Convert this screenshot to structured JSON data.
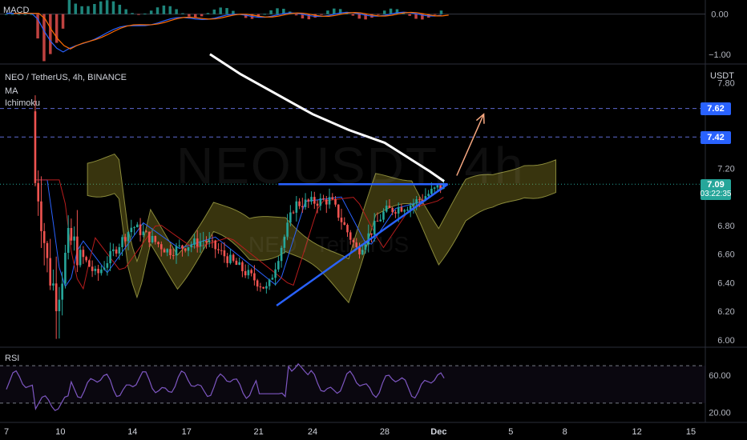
{
  "header": {
    "symbol_line": "NEO / TetherUS, 4h, BINANCE",
    "indicators": [
      "MA",
      "Ichimoku"
    ],
    "macd_label": "MACD",
    "rsi_label": "RSI",
    "watermark": "NEOUSDT, 4h",
    "watermark_sub": "NEO / TetherUS"
  },
  "price_axis": {
    "unit": "USDT",
    "ticks": [
      "7.80",
      "7.20",
      "6.80",
      "6.60",
      "6.40",
      "6.20",
      "6.00"
    ],
    "tick_values": [
      7.8,
      7.2,
      6.8,
      6.6,
      6.4,
      6.2,
      6.0
    ],
    "range": [
      5.96,
      7.92
    ],
    "levels": [
      {
        "label": "7.62",
        "value": 7.62
      },
      {
        "label": "7.42",
        "value": 7.42
      }
    ],
    "current": {
      "value_label": "7.09",
      "value": 7.09,
      "countdown": "03:22:35"
    }
  },
  "macd_axis": {
    "ticks": [
      "0.00",
      "−1.00"
    ],
    "tick_values": [
      0.0,
      -1.0
    ],
    "range": [
      -1.2,
      0.35
    ]
  },
  "rsi_axis": {
    "ticks": [
      "60.00",
      "20.00"
    ],
    "tick_values": [
      60,
      20
    ],
    "range": [
      12,
      88
    ],
    "band": [
      30,
      70
    ]
  },
  "x_axis": {
    "labels": [
      "7",
      "10",
      "14",
      "17",
      "21",
      "24",
      "28",
      "Dec",
      "5",
      "8",
      "12",
      "15"
    ],
    "bold_label": "Dec",
    "range": [
      6.6,
      15.6
    ]
  },
  "chart_data": {
    "type": "candlestick",
    "symbol": "NEO / TetherUS",
    "timeframe": "4h",
    "exchange": "BINANCE",
    "unit": "USDT",
    "trendlines": [
      {
        "name": "resistance",
        "from": {
          "x": 22.1,
          "y": 7.09
        },
        "to": {
          "x": 31.5,
          "y": 7.09
        },
        "color": "#2962ff"
      },
      {
        "name": "support",
        "from": {
          "x": 22.0,
          "y": 6.24
        },
        "to": {
          "x": 31.5,
          "y": 7.09
        },
        "color": "#2962ff"
      }
    ],
    "projection_arrow": {
      "from": {
        "x": 32.0,
        "y": 7.15
      },
      "to": {
        "x": 33.5,
        "y": 7.58
      },
      "color": "#f7a881"
    },
    "horizontal_levels": [
      7.62,
      7.42
    ],
    "ma_line": [
      {
        "x": 18.3,
        "y": 8.0
      },
      {
        "x": 20.0,
        "y": 7.86
      },
      {
        "x": 22.0,
        "y": 7.72
      },
      {
        "x": 24.0,
        "y": 7.58
      },
      {
        "x": 26.0,
        "y": 7.47
      },
      {
        "x": 28.0,
        "y": 7.38
      },
      {
        "x": 29.5,
        "y": 7.26
      },
      {
        "x": 30.5,
        "y": 7.18
      },
      {
        "x": 31.3,
        "y": 7.11
      }
    ],
    "ohlc_sample": [
      {
        "x": 8.7,
        "o": 7.7,
        "h": 7.95,
        "l": 6.9,
        "c": 7.1
      },
      {
        "x": 9.3,
        "o": 7.1,
        "h": 7.4,
        "l": 6.2,
        "c": 6.5
      },
      {
        "x": 9.8,
        "o": 6.5,
        "h": 7.3,
        "l": 6.02,
        "c": 6.3
      },
      {
        "x": 10.5,
        "o": 6.3,
        "h": 6.9,
        "l": 6.25,
        "c": 6.7
      },
      {
        "x": 12.0,
        "o": 6.7,
        "h": 6.9,
        "l": 6.3,
        "c": 6.45
      },
      {
        "x": 14.0,
        "o": 6.5,
        "h": 6.95,
        "l": 6.45,
        "c": 6.8
      },
      {
        "x": 16.0,
        "o": 6.8,
        "h": 6.92,
        "l": 6.55,
        "c": 6.62
      },
      {
        "x": 18.0,
        "o": 6.62,
        "h": 6.9,
        "l": 6.55,
        "c": 6.7
      },
      {
        "x": 20.0,
        "o": 6.75,
        "h": 6.88,
        "l": 6.45,
        "c": 6.5
      },
      {
        "x": 21.5,
        "o": 6.5,
        "h": 6.55,
        "l": 6.26,
        "c": 6.35
      },
      {
        "x": 23.0,
        "o": 6.45,
        "h": 7.05,
        "l": 6.4,
        "c": 6.95
      },
      {
        "x": 25.0,
        "o": 6.95,
        "h": 7.04,
        "l": 6.8,
        "c": 6.98
      },
      {
        "x": 26.5,
        "o": 6.95,
        "h": 7.0,
        "l": 6.55,
        "c": 6.62
      },
      {
        "x": 28.0,
        "o": 6.62,
        "h": 6.95,
        "l": 6.58,
        "c": 6.9
      },
      {
        "x": 29.5,
        "o": 6.9,
        "h": 7.02,
        "l": 6.78,
        "c": 6.95
      },
      {
        "x": 31.3,
        "o": 6.95,
        "h": 7.12,
        "l": 6.9,
        "c": 7.09
      }
    ]
  }
}
